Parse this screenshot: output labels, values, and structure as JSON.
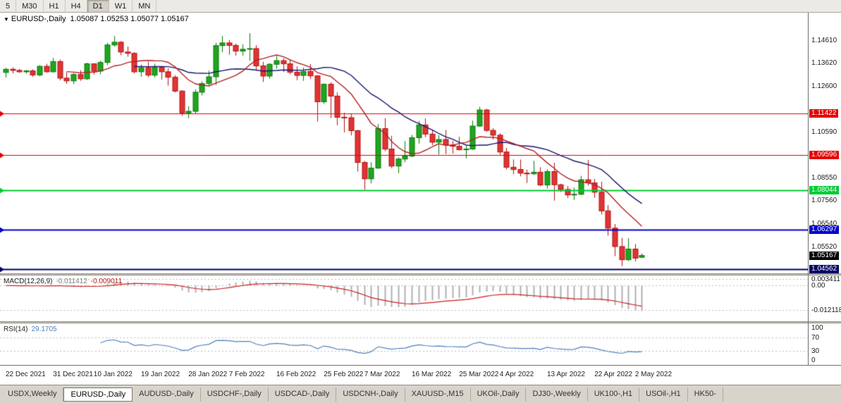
{
  "toolbar": {
    "timeframes": [
      {
        "label": "5",
        "active": false
      },
      {
        "label": "M30",
        "active": false
      },
      {
        "label": "H1",
        "active": false
      },
      {
        "label": "H4",
        "active": false
      },
      {
        "label": "D1",
        "active": true
      },
      {
        "label": "W1",
        "active": false
      },
      {
        "label": "MN",
        "active": false
      }
    ]
  },
  "chart": {
    "dropdown_icon": "▼",
    "title_text": "EURUSD-,Daily",
    "ohlc_text": "1.05087 1.05253 1.05077 1.05167",
    "axis_labels": [
      {
        "price": 1.1461,
        "text": "1.14610"
      },
      {
        "price": 1.1362,
        "text": "1.13620"
      },
      {
        "price": 1.126,
        "text": "1.12600"
      },
      {
        "price": 1.1059,
        "text": "1.10590"
      },
      {
        "price": 1.0855,
        "text": "1.08550"
      },
      {
        "price": 1.0756,
        "text": "1.07560"
      },
      {
        "price": 1.0654,
        "text": "1.06540"
      },
      {
        "price": 1.0552,
        "text": "1.05520"
      }
    ],
    "hlines": [
      {
        "price": 1.11422,
        "text": "1.11422",
        "color": "#e60000",
        "width": 1
      },
      {
        "price": 1.09596,
        "text": "1.09596",
        "color": "#e60000",
        "width": 1
      },
      {
        "price": 1.08044,
        "text": "1.08044",
        "color": "#00cc33",
        "width": 2
      },
      {
        "price": 1.06297,
        "text": "1.06297",
        "color": "#0000cc",
        "width": 2
      },
      {
        "price": 1.04562,
        "text": "1.04562",
        "color": "#000066",
        "width": 2
      }
    ],
    "current_price": {
      "price": 1.05167,
      "text": "1.05167",
      "color": "#000000"
    },
    "colors": {
      "background": "#ffffff",
      "up": "#1fa51f",
      "up_border": "#0c7a0c",
      "down": "#e03434",
      "down_border": "#b51212",
      "ma_fast": "#b22222",
      "ma_slow": "#191970"
    }
  },
  "chart_data": {
    "type": "candlestick",
    "symbol": "EURUSD",
    "period": "Daily",
    "ylim": [
      1.0438,
      1.1585
    ],
    "ma_periods": {
      "fast": 10,
      "slow": 20
    },
    "candles": [
      [
        1.1322,
        1.1342,
        1.13,
        1.1336
      ],
      [
        1.1336,
        1.1344,
        1.1317,
        1.1331
      ],
      [
        1.1331,
        1.1337,
        1.132,
        1.1325
      ],
      [
        1.1325,
        1.1333,
        1.1316,
        1.1329
      ],
      [
        1.1329,
        1.1336,
        1.1303,
        1.1311
      ],
      [
        1.1311,
        1.1354,
        1.1305,
        1.1349
      ],
      [
        1.1349,
        1.136,
        1.1321,
        1.1325
      ],
      [
        1.1325,
        1.1386,
        1.1321,
        1.137
      ],
      [
        1.137,
        1.1379,
        1.1287,
        1.1297
      ],
      [
        1.1297,
        1.1323,
        1.1272,
        1.1285
      ],
      [
        1.1285,
        1.132,
        1.1271,
        1.1313
      ],
      [
        1.1313,
        1.1332,
        1.1285,
        1.1294
      ],
      [
        1.1294,
        1.1365,
        1.1289,
        1.136
      ],
      [
        1.136,
        1.1362,
        1.1313,
        1.1328
      ],
      [
        1.1328,
        1.1374,
        1.1314,
        1.1366
      ],
      [
        1.1366,
        1.1453,
        1.1354,
        1.1443
      ],
      [
        1.1443,
        1.1482,
        1.1435,
        1.1455
      ],
      [
        1.1455,
        1.146,
        1.1398,
        1.1412
      ],
      [
        1.1412,
        1.1436,
        1.1391,
        1.1406
      ],
      [
        1.1406,
        1.1411,
        1.1318,
        1.1325
      ],
      [
        1.1325,
        1.1357,
        1.1303,
        1.1343
      ],
      [
        1.1343,
        1.1369,
        1.1301,
        1.131
      ],
      [
        1.131,
        1.136,
        1.13,
        1.1344
      ],
      [
        1.1344,
        1.1349,
        1.1291,
        1.1325
      ],
      [
        1.1325,
        1.134,
        1.1264,
        1.1301
      ],
      [
        1.1301,
        1.131,
        1.1235,
        1.124
      ],
      [
        1.124,
        1.1244,
        1.1131,
        1.1144
      ],
      [
        1.1144,
        1.1174,
        1.1121,
        1.1151
      ],
      [
        1.1151,
        1.1248,
        1.1141,
        1.1235
      ],
      [
        1.1235,
        1.1283,
        1.1221,
        1.1273
      ],
      [
        1.1273,
        1.133,
        1.1266,
        1.1303
      ],
      [
        1.1303,
        1.1452,
        1.1267,
        1.144
      ],
      [
        1.144,
        1.1483,
        1.1411,
        1.1452
      ],
      [
        1.1452,
        1.1465,
        1.14,
        1.1441
      ],
      [
        1.1441,
        1.1449,
        1.1396,
        1.1416
      ],
      [
        1.1416,
        1.1446,
        1.1396,
        1.1424
      ],
      [
        1.1424,
        1.1495,
        1.1374,
        1.1427
      ],
      [
        1.1427,
        1.1442,
        1.133,
        1.1351
      ],
      [
        1.1351,
        1.1369,
        1.128,
        1.1306
      ],
      [
        1.1306,
        1.1363,
        1.1295,
        1.1358
      ],
      [
        1.1358,
        1.1395,
        1.1338,
        1.1374
      ],
      [
        1.1374,
        1.1385,
        1.1324,
        1.136
      ],
      [
        1.136,
        1.138,
        1.1313,
        1.1323
      ],
      [
        1.1323,
        1.1349,
        1.1288,
        1.1309
      ],
      [
        1.1309,
        1.1344,
        1.1285,
        1.1327
      ],
      [
        1.1327,
        1.1359,
        1.1294,
        1.1307
      ],
      [
        1.1307,
        1.131,
        1.1106,
        1.1193
      ],
      [
        1.1193,
        1.1274,
        1.1184,
        1.127
      ],
      [
        1.127,
        1.1279,
        1.1121,
        1.1218
      ],
      [
        1.1218,
        1.1234,
        1.109,
        1.1125
      ],
      [
        1.1125,
        1.1145,
        1.1058,
        1.1123
      ],
      [
        1.1123,
        1.1139,
        1.1045,
        1.1066
      ],
      [
        1.1066,
        1.1069,
        1.0886,
        1.0926
      ],
      [
        1.0926,
        1.0932,
        1.0806,
        1.0854
      ],
      [
        1.0854,
        1.0927,
        1.0834,
        1.0901
      ],
      [
        1.0901,
        1.1095,
        1.0899,
        1.1075
      ],
      [
        1.1075,
        1.1121,
        1.0976,
        1.0985
      ],
      [
        1.0985,
        1.1043,
        1.0901,
        1.091
      ],
      [
        1.091,
        1.0948,
        1.0879,
        1.0941
      ],
      [
        1.0941,
        1.102,
        1.0927,
        1.0954
      ],
      [
        1.0954,
        1.1047,
        1.095,
        1.1035
      ],
      [
        1.1035,
        1.1109,
        1.1009,
        1.1091
      ],
      [
        1.1091,
        1.112,
        1.1037,
        1.1051
      ],
      [
        1.1051,
        1.1069,
        1.1002,
        1.1015
      ],
      [
        1.1015,
        1.1046,
        1.0961,
        1.1027
      ],
      [
        1.1027,
        1.1069,
        1.0963,
        1.1003
      ],
      [
        1.1003,
        1.1021,
        1.0965,
        1.0997
      ],
      [
        1.0997,
        1.1039,
        1.0979,
        1.0982
      ],
      [
        1.0982,
        1.1,
        1.0944,
        1.0985
      ],
      [
        1.0985,
        1.111,
        1.0981,
        1.1086
      ],
      [
        1.1086,
        1.1171,
        1.1083,
        1.1157
      ],
      [
        1.1157,
        1.1162,
        1.1061,
        1.1067
      ],
      [
        1.1067,
        1.1077,
        1.1027,
        1.1046
      ],
      [
        1.1046,
        1.1054,
        1.096,
        1.0972
      ],
      [
        1.0972,
        1.099,
        1.0896,
        1.0905
      ],
      [
        1.0905,
        1.0939,
        1.0874,
        1.0895
      ],
      [
        1.0895,
        1.0939,
        1.0865,
        1.0879
      ],
      [
        1.0879,
        1.0894,
        1.0836,
        1.0876
      ],
      [
        1.0876,
        1.0933,
        1.0871,
        1.0883
      ],
      [
        1.0883,
        1.0905,
        1.0821,
        1.0827
      ],
      [
        1.0827,
        1.0896,
        1.0812,
        1.0886
      ],
      [
        1.0886,
        1.0925,
        1.0758,
        1.0828
      ],
      [
        1.0828,
        1.0832,
        1.0796,
        1.0807
      ],
      [
        1.0807,
        1.0822,
        1.077,
        1.0783
      ],
      [
        1.0783,
        1.0815,
        1.0761,
        1.0786
      ],
      [
        1.0786,
        1.0867,
        1.0783,
        1.085
      ],
      [
        1.085,
        1.0937,
        1.0824,
        1.0836
      ],
      [
        1.0836,
        1.0853,
        1.077,
        1.0795
      ],
      [
        1.0795,
        1.0841,
        1.0697,
        1.0713
      ],
      [
        1.0713,
        1.0738,
        1.0604,
        1.0637
      ],
      [
        1.0637,
        1.0655,
        1.0514,
        1.0556
      ],
      [
        1.0556,
        1.0594,
        1.047,
        1.0498
      ],
      [
        1.0498,
        1.0593,
        1.0492,
        1.0545
      ],
      [
        1.0545,
        1.0567,
        1.049,
        1.0505
      ],
      [
        1.05087,
        1.05253,
        1.05077,
        1.05167
      ]
    ],
    "date_labels": [
      {
        "idx": 0,
        "text": "22 Dec 2021"
      },
      {
        "idx": 7,
        "text": "31 Dec 2021"
      },
      {
        "idx": 13,
        "text": "10 Jan 2022"
      },
      {
        "idx": 20,
        "text": "19 Jan 2022"
      },
      {
        "idx": 27,
        "text": "28 Jan 2022"
      },
      {
        "idx": 33,
        "text": "7 Feb 2022"
      },
      {
        "idx": 40,
        "text": "16 Feb 2022"
      },
      {
        "idx": 47,
        "text": "25 Feb 2022"
      },
      {
        "idx": 53,
        "text": "7 Mar 2022"
      },
      {
        "idx": 60,
        "text": "16 Mar 2022"
      },
      {
        "idx": 67,
        "text": "25 Mar 2022"
      },
      {
        "idx": 73,
        "text": "4 Apr 2022"
      },
      {
        "idx": 80,
        "text": "13 Apr 2022"
      },
      {
        "idx": 87,
        "text": "22 Apr 2022"
      },
      {
        "idx": 93,
        "text": "2 May 2022"
      }
    ]
  },
  "macd": {
    "name": "MACD(12,26,9)",
    "value_main": "-0.011412",
    "value_signal": "-0.009011",
    "ylim": [
      -0.0175,
      0.005
    ],
    "axis_labels": [
      {
        "value": 0.003411,
        "text": "0.003411"
      },
      {
        "value": 0,
        "text": "0.00"
      },
      {
        "value": -0.012118,
        "text": "-0.012118"
      }
    ],
    "colors": {
      "histogram": "#b0b0b0",
      "signal": "#cc2020"
    }
  },
  "rsi": {
    "name": "RSI(14)",
    "value": "29.1705",
    "color": "#4f81bd",
    "dashed_levels": [
      70,
      30
    ],
    "levels": [
      {
        "value": 100,
        "text": "100"
      },
      {
        "value": 70,
        "text": "70"
      },
      {
        "value": 30,
        "text": "30"
      },
      {
        "value": 0,
        "text": "0"
      }
    ]
  },
  "tabs": [
    {
      "label": "USDX,Weekly",
      "active": false
    },
    {
      "label": "EURUSD-,Daily",
      "active": true
    },
    {
      "label": "AUDUSD-,Daily",
      "active": false
    },
    {
      "label": "USDCHF-,Daily",
      "active": false
    },
    {
      "label": "USDCAD-,Daily",
      "active": false
    },
    {
      "label": "USDCNH-,Daily",
      "active": false
    },
    {
      "label": "XAUUSD-,M15",
      "active": false
    },
    {
      "label": "UKOil-,Daily",
      "active": false
    },
    {
      "label": "DJ30-,Weekly",
      "active": false
    },
    {
      "label": "UK100-,H1",
      "active": false
    },
    {
      "label": "USOil-,H1",
      "active": false
    },
    {
      "label": "HK50-",
      "active": false
    }
  ]
}
